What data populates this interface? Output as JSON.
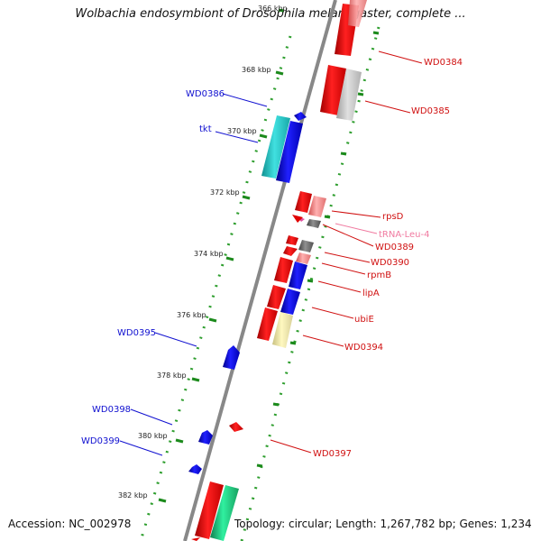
{
  "title": "Wolbachia endosymbiont of Drosophila melanogaster, complete ...",
  "footer": {
    "accession": "Accession: NC_002978",
    "summary": "Topology: circular; Length: 1,267,782 bp; Genes: 1,234"
  },
  "colors": {
    "backbone": "#8a8a8a",
    "tick": "#1c8a1c",
    "dot": "#2e9e2e",
    "label_blue": "#1010d0",
    "label_red": "#d01010",
    "label_pink": "#f07aa0"
  },
  "ticks": [
    {
      "label": "366 kbp",
      "faded": true
    },
    {
      "label": "368 kbp"
    },
    {
      "label": "370 kbp"
    },
    {
      "label": "372 kbp"
    },
    {
      "label": "374 kbp"
    },
    {
      "label": "376 kbp"
    },
    {
      "label": "378 kbp"
    },
    {
      "label": "380 kbp"
    },
    {
      "label": "382 kbp"
    }
  ],
  "genes": [
    {
      "name": "WD0384",
      "strand": "+",
      "color": "#e00000"
    },
    {
      "name": "WD0385",
      "strand": "+",
      "color": "#c0c0c0"
    },
    {
      "name": "WD0386",
      "strand": "-",
      "color": "#0000e0"
    },
    {
      "name": "tkt",
      "strand": "-",
      "color": "#20c8c8"
    },
    {
      "name": "rpsD",
      "strand": "+",
      "color": "#f08080"
    },
    {
      "name": "tRNA-Leu-4",
      "strand": "+",
      "color": "#f07aa0"
    },
    {
      "name": "WD0389",
      "strand": "+",
      "color": "#606060"
    },
    {
      "name": "WD0390",
      "strand": "+",
      "color": "#e00000"
    },
    {
      "name": "rpmB",
      "strand": "+",
      "color": "#f08080"
    },
    {
      "name": "lipA",
      "strand": "+",
      "color": "#e00000"
    },
    {
      "name": "ubiE",
      "strand": "+",
      "color": "#0000e0"
    },
    {
      "name": "WD0394",
      "strand": "+",
      "color": "#f0e8a0"
    },
    {
      "name": "WD0395",
      "strand": "-",
      "color": "#0000e0"
    },
    {
      "name": "WD0397",
      "strand": "+",
      "color": "#e00000"
    },
    {
      "name": "WD0398",
      "strand": "-",
      "color": "#0000e0"
    },
    {
      "name": "WD0399",
      "strand": "-",
      "color": "#0000e0"
    }
  ]
}
